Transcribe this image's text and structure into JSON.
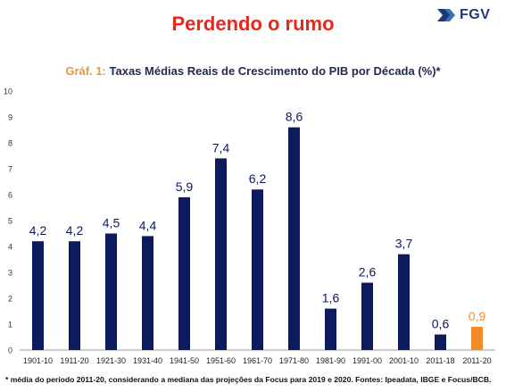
{
  "header": {
    "title": "Perdendo o rumo",
    "logo_text": "FGV",
    "logo_icon": "fgv-arrow-icon"
  },
  "chart_heading": {
    "prefix": "Gráf. 1:",
    "main": "Taxas Médias Reais de Crescimento do PIB por Década (%)*"
  },
  "chart_data": {
    "type": "bar",
    "title": "Gráf. 1: Taxas Médias Reais de Crescimento do PIB por Década (%)*",
    "xlabel": "",
    "ylabel": "",
    "ylim": [
      0,
      10
    ],
    "yticks": [
      0,
      1,
      2,
      3,
      4,
      5,
      6,
      7,
      8,
      9,
      10
    ],
    "grid": false,
    "categories": [
      "1901-10",
      "1911-20",
      "1921-30",
      "1931-40",
      "1941-50",
      "1951-60",
      "1961-70",
      "1971-80",
      "1981-90",
      "1991-00",
      "2001-10",
      "2011-18",
      "2011-20"
    ],
    "values": [
      4.2,
      4.2,
      4.5,
      4.4,
      5.9,
      7.4,
      6.2,
      8.6,
      1.6,
      2.6,
      3.7,
      0.6,
      0.9
    ],
    "value_labels": [
      "4,2",
      "4,2",
      "4,5",
      "4,4",
      "5,9",
      "7,4",
      "6,2",
      "8,6",
      "1,6",
      "2,6",
      "3,7",
      "0,6",
      "0,9"
    ],
    "colors": [
      "#0d1a5c",
      "#0d1a5c",
      "#0d1a5c",
      "#0d1a5c",
      "#0d1a5c",
      "#0d1a5c",
      "#0d1a5c",
      "#0d1a5c",
      "#0d1a5c",
      "#0d1a5c",
      "#0d1a5c",
      "#0d1a5c",
      "#f28c28"
    ],
    "label_colors": [
      "#0d1a5c",
      "#0d1a5c",
      "#0d1a5c",
      "#0d1a5c",
      "#0d1a5c",
      "#0d1a5c",
      "#0d1a5c",
      "#0d1a5c",
      "#0d1a5c",
      "#0d1a5c",
      "#0d1a5c",
      "#0d1a5c",
      "#f28c28"
    ]
  },
  "footnote": "* média do período 2011-20, considerando a mediana das projeções da Focus para 2019 e 2020. Fontes: Ipeadata, IBGE e Focus/BCB."
}
